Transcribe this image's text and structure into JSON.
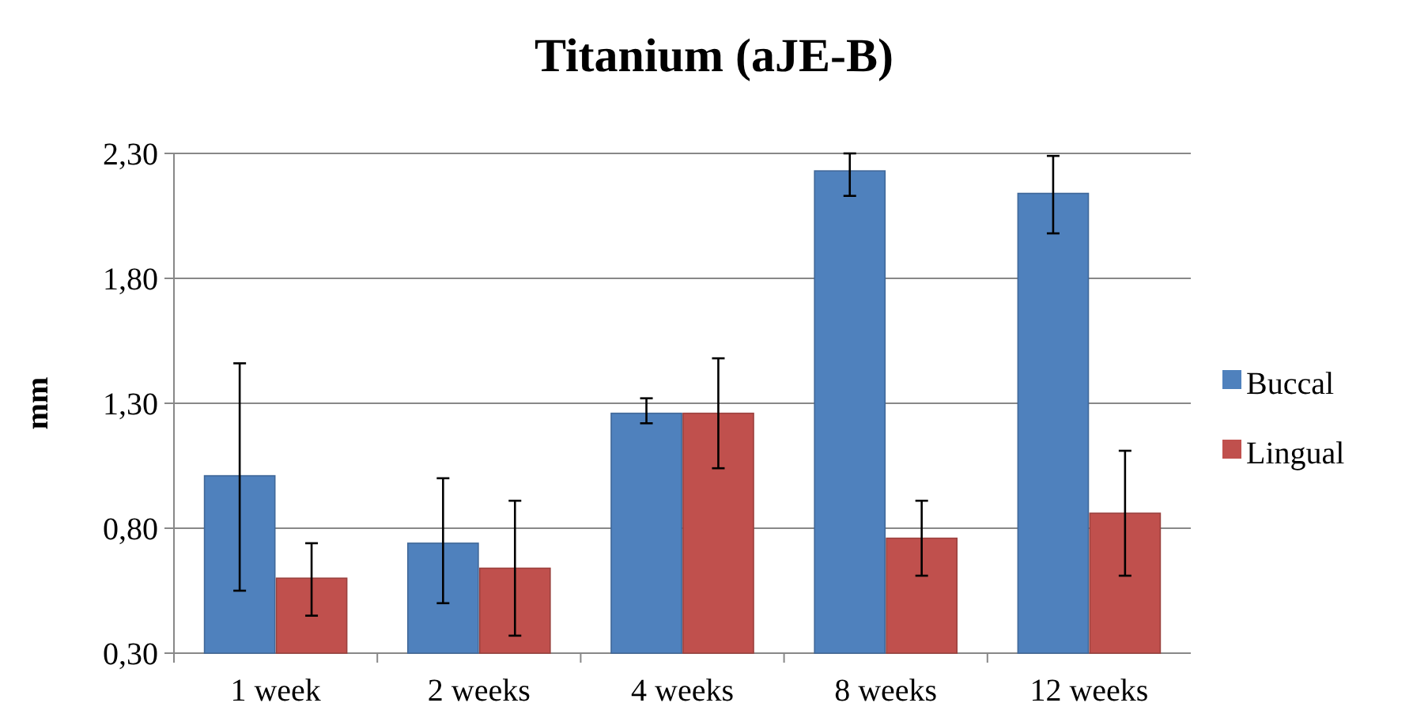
{
  "chart_data": {
    "type": "bar",
    "title": "Titanium (aJE-B)",
    "ylabel": "mm",
    "categories": [
      "1 week",
      "2 weeks",
      "4 weeks",
      "8 weeks",
      "12 weeks"
    ],
    "series": [
      {
        "name": "Buccal",
        "color": "#4f81bd",
        "values": [
          1.01,
          0.74,
          1.26,
          2.23,
          2.14
        ],
        "errors": [
          [
            0.55,
            1.46
          ],
          [
            0.5,
            1.0
          ],
          [
            1.22,
            1.32
          ],
          [
            2.13,
            2.3
          ],
          [
            1.98,
            2.29
          ]
        ]
      },
      {
        "name": "Lingual",
        "color": "#c0504d",
        "values": [
          0.6,
          0.64,
          1.26,
          0.76,
          0.86
        ],
        "errors": [
          [
            0.45,
            0.74
          ],
          [
            0.37,
            0.91
          ],
          [
            1.04,
            1.48
          ],
          [
            0.61,
            0.91
          ],
          [
            0.61,
            1.11
          ]
        ]
      }
    ],
    "ylim": [
      0.3,
      2.3
    ],
    "yticks": [
      {
        "value": 0.3,
        "label": "0,30"
      },
      {
        "value": 0.8,
        "label": "0,80"
      },
      {
        "value": 1.3,
        "label": "1,30"
      },
      {
        "value": 1.8,
        "label": "1,80"
      },
      {
        "value": 2.3,
        "label": "2,30"
      }
    ],
    "grid": "y",
    "legend": "right"
  }
}
